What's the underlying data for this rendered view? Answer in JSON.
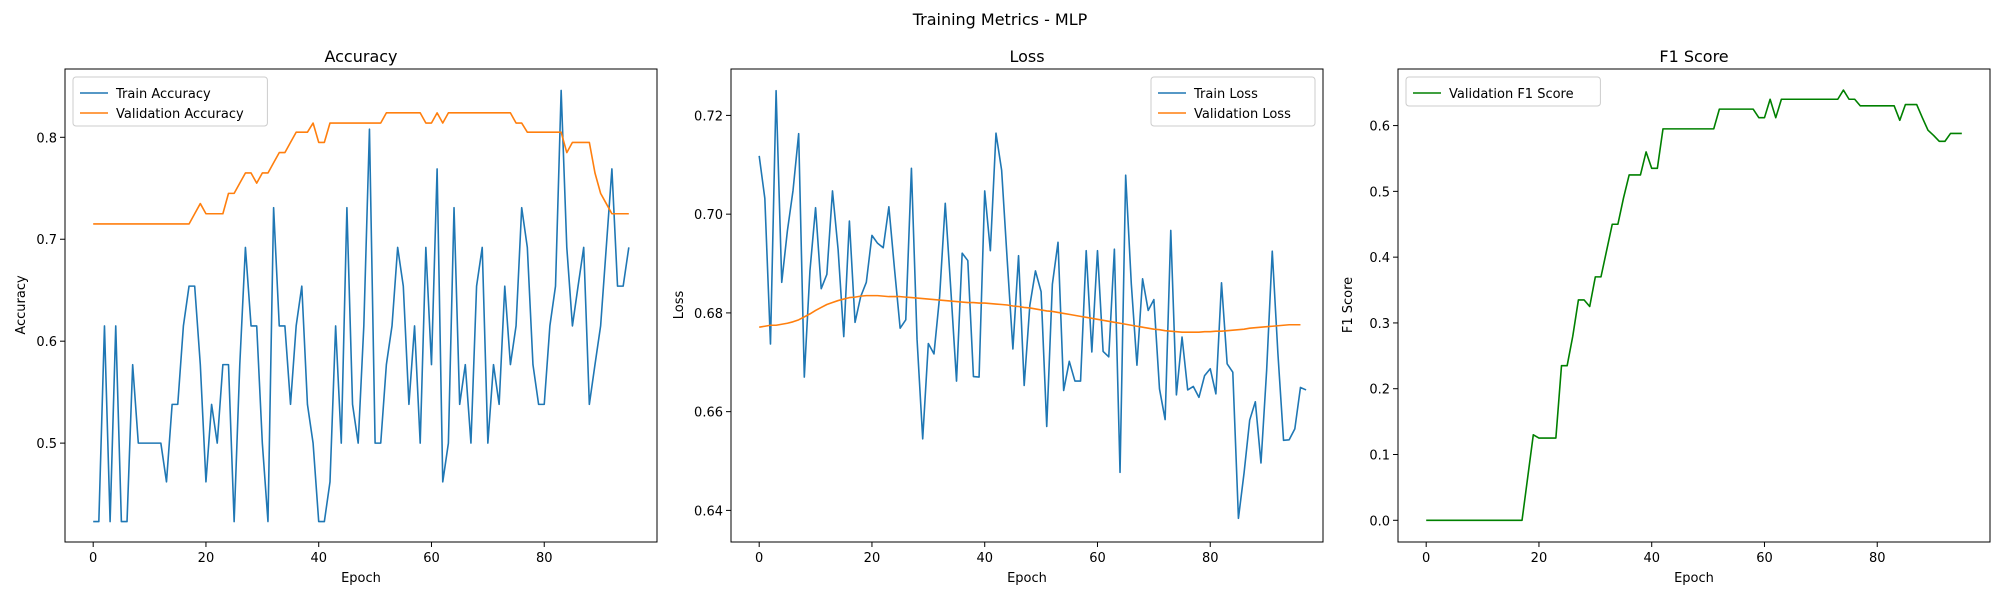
{
  "figure": {
    "suptitle": "Training Metrics - MLP"
  },
  "chart_data": [
    {
      "type": "line",
      "title": "Accuracy",
      "xlabel": "Epoch",
      "ylabel": "Accuracy",
      "xlim": [
        -5,
        100
      ],
      "ylim": [
        0.403,
        0.867
      ],
      "xticks": [
        0,
        20,
        40,
        60,
        80
      ],
      "xtick_labels": [
        "0",
        "20",
        "40",
        "60",
        "80"
      ],
      "yticks": [
        0.5,
        0.6,
        0.7,
        0.8
      ],
      "ytick_labels": [
        "0.5",
        "0.6",
        "0.7",
        "0.8"
      ],
      "grid": false,
      "legend": "upper left",
      "series": [
        {
          "name": "Train Accuracy",
          "color": "#1f77b4",
          "values": [
            0.423,
            0.423,
            0.615,
            0.423,
            0.615,
            0.423,
            0.423,
            0.577,
            0.5,
            0.5,
            0.5,
            0.5,
            0.5,
            0.462,
            0.538,
            0.538,
            0.615,
            0.654,
            0.654,
            0.577,
            0.462,
            0.538,
            0.5,
            0.577,
            0.577,
            0.423,
            0.577,
            0.692,
            0.615,
            0.615,
            0.5,
            0.423,
            0.731,
            0.615,
            0.615,
            0.538,
            0.615,
            0.654,
            0.538,
            0.5,
            0.423,
            0.423,
            0.462,
            0.615,
            0.5,
            0.731,
            0.538,
            0.5,
            0.615,
            0.808,
            0.5,
            0.5,
            0.577,
            0.615,
            0.692,
            0.654,
            0.538,
            0.615,
            0.5,
            0.692,
            0.577,
            0.769,
            0.462,
            0.5,
            0.731,
            0.538,
            0.577,
            0.5,
            0.654,
            0.692,
            0.5,
            0.577,
            0.538,
            0.654,
            0.577,
            0.615,
            0.731,
            0.692,
            0.577,
            0.538,
            0.538,
            0.615,
            0.654,
            0.846,
            0.692,
            0.615,
            0.654,
            0.692,
            0.538,
            0.577,
            0.615,
            0.692,
            0.769,
            0.654,
            0.654,
            0.692
          ]
        },
        {
          "name": "Validation Accuracy",
          "color": "#ff7f0e",
          "values": [
            0.715,
            0.715,
            0.715,
            0.715,
            0.715,
            0.715,
            0.715,
            0.715,
            0.715,
            0.715,
            0.715,
            0.715,
            0.715,
            0.715,
            0.715,
            0.715,
            0.715,
            0.715,
            0.725,
            0.735,
            0.725,
            0.725,
            0.725,
            0.725,
            0.745,
            0.745,
            0.755,
            0.765,
            0.765,
            0.755,
            0.765,
            0.765,
            0.775,
            0.785,
            0.785,
            0.795,
            0.805,
            0.805,
            0.805,
            0.814,
            0.795,
            0.795,
            0.814,
            0.814,
            0.814,
            0.814,
            0.814,
            0.814,
            0.814,
            0.814,
            0.814,
            0.814,
            0.824,
            0.824,
            0.824,
            0.824,
            0.824,
            0.824,
            0.824,
            0.814,
            0.814,
            0.824,
            0.814,
            0.824,
            0.824,
            0.824,
            0.824,
            0.824,
            0.824,
            0.824,
            0.824,
            0.824,
            0.824,
            0.824,
            0.824,
            0.814,
            0.814,
            0.805,
            0.805,
            0.805,
            0.805,
            0.805,
            0.805,
            0.805,
            0.785,
            0.795,
            0.795,
            0.795,
            0.795,
            0.765,
            0.745,
            0.735,
            0.725,
            0.725,
            0.725,
            0.725
          ]
        }
      ]
    },
    {
      "type": "line",
      "title": "Loss",
      "xlabel": "Epoch",
      "ylabel": "Loss",
      "xlim": [
        -5,
        100
      ],
      "ylim": [
        0.6336,
        0.7294
      ],
      "xticks": [
        0,
        20,
        40,
        60,
        80
      ],
      "xtick_labels": [
        "0",
        "20",
        "40",
        "60",
        "80"
      ],
      "yticks": [
        0.64,
        0.66,
        0.68,
        0.7,
        0.72
      ],
      "ytick_labels": [
        "0.64",
        "0.66",
        "0.68",
        "0.70",
        "0.72"
      ],
      "grid": false,
      "legend": "upper right",
      "series": [
        {
          "name": "Train Loss",
          "color": "#1f77b4",
          "values": [
            0.7118,
            0.7032,
            0.6737,
            0.725,
            0.6862,
            0.6966,
            0.7048,
            0.7163,
            0.667,
            0.6885,
            0.7013,
            0.6849,
            0.6878,
            0.7047,
            0.6928,
            0.6752,
            0.6986,
            0.6781,
            0.6833,
            0.6862,
            0.6957,
            0.6941,
            0.6932,
            0.7015,
            0.6889,
            0.6769,
            0.6786,
            0.7093,
            0.6746,
            0.6545,
            0.6738,
            0.6717,
            0.6833,
            0.7022,
            0.6845,
            0.6662,
            0.6921,
            0.6906,
            0.6671,
            0.667,
            0.7047,
            0.6926,
            0.7164,
            0.7089,
            0.6905,
            0.6727,
            0.6916,
            0.6653,
            0.6815,
            0.6885,
            0.6843,
            0.657,
            0.6858,
            0.6943,
            0.6643,
            0.6702,
            0.6662,
            0.6662,
            0.6926,
            0.6721,
            0.6926,
            0.6722,
            0.6711,
            0.6929,
            0.6477,
            0.7079,
            0.6859,
            0.6694,
            0.6869,
            0.6805,
            0.6827,
            0.6646,
            0.6584,
            0.6967,
            0.6634,
            0.6751,
            0.6644,
            0.6651,
            0.6629,
            0.6673,
            0.6687,
            0.6636,
            0.6861,
            0.6697,
            0.668,
            0.6384,
            0.6476,
            0.6583,
            0.662,
            0.6496,
            0.6683,
            0.6925,
            0.6718,
            0.6542,
            0.6543,
            0.6565,
            0.6649,
            0.6644
          ]
        },
        {
          "name": "Validation Loss",
          "color": "#ff7f0e",
          "values": [
            0.6771,
            0.6773,
            0.6775,
            0.6775,
            0.6777,
            0.6779,
            0.6782,
            0.6786,
            0.6792,
            0.6798,
            0.6805,
            0.6811,
            0.6817,
            0.6821,
            0.6825,
            0.6828,
            0.6831,
            0.6832,
            0.6834,
            0.6835,
            0.6835,
            0.6835,
            0.6834,
            0.6833,
            0.6833,
            0.6833,
            0.6832,
            0.6831,
            0.683,
            0.6829,
            0.6828,
            0.6827,
            0.6826,
            0.6825,
            0.6824,
            0.6823,
            0.6822,
            0.6821,
            0.6821,
            0.682,
            0.682,
            0.6819,
            0.6818,
            0.6817,
            0.6816,
            0.6814,
            0.6813,
            0.6811,
            0.681,
            0.6808,
            0.6806,
            0.6804,
            0.6803,
            0.6801,
            0.6799,
            0.6797,
            0.6795,
            0.6793,
            0.6791,
            0.6789,
            0.6787,
            0.6785,
            0.6783,
            0.6781,
            0.6779,
            0.6777,
            0.6775,
            0.6773,
            0.6771,
            0.6769,
            0.6767,
            0.6766,
            0.6764,
            0.6763,
            0.6762,
            0.6761,
            0.6761,
            0.6761,
            0.6761,
            0.6762,
            0.6762,
            0.6763,
            0.6763,
            0.6764,
            0.6765,
            0.6766,
            0.6767,
            0.6769,
            0.677,
            0.6771,
            0.6772,
            0.6773,
            0.6774,
            0.6775,
            0.6776,
            0.6776,
            0.6776
          ]
        }
      ]
    },
    {
      "type": "line",
      "title": "F1 Score",
      "xlabel": "Epoch",
      "ylabel": "F1 Score",
      "xlim": [
        -5,
        100
      ],
      "ylim": [
        -0.033,
        0.686
      ],
      "xticks": [
        0,
        20,
        40,
        60,
        80
      ],
      "xtick_labels": [
        "0",
        "20",
        "40",
        "60",
        "80"
      ],
      "yticks": [
        0.0,
        0.1,
        0.2,
        0.3,
        0.4,
        0.5,
        0.6
      ],
      "ytick_labels": [
        "0.0",
        "0.1",
        "0.2",
        "0.3",
        "0.4",
        "0.5",
        "0.6"
      ],
      "grid": false,
      "legend": "upper left",
      "series": [
        {
          "name": "Validation F1 Score",
          "color": "#008000",
          "values": [
            0,
            0,
            0,
            0,
            0,
            0,
            0,
            0,
            0,
            0,
            0,
            0,
            0,
            0,
            0,
            0,
            0,
            0,
            0.065,
            0.13,
            0.125,
            0.125,
            0.125,
            0.125,
            0.235,
            0.235,
            0.28,
            0.335,
            0.335,
            0.325,
            0.37,
            0.37,
            0.41,
            0.45,
            0.45,
            0.49,
            0.525,
            0.525,
            0.525,
            0.56,
            0.535,
            0.535,
            0.595,
            0.595,
            0.595,
            0.595,
            0.595,
            0.595,
            0.595,
            0.595,
            0.595,
            0.595,
            0.625,
            0.625,
            0.625,
            0.625,
            0.625,
            0.625,
            0.625,
            0.612,
            0.612,
            0.64,
            0.612,
            0.64,
            0.64,
            0.64,
            0.64,
            0.64,
            0.64,
            0.64,
            0.64,
            0.64,
            0.64,
            0.64,
            0.654,
            0.64,
            0.64,
            0.63,
            0.63,
            0.63,
            0.63,
            0.63,
            0.63,
            0.63,
            0.608,
            0.632,
            0.632,
            0.632,
            0.612,
            0.593,
            0.585,
            0.576,
            0.576,
            0.588,
            0.588,
            0.588
          ]
        }
      ]
    }
  ]
}
